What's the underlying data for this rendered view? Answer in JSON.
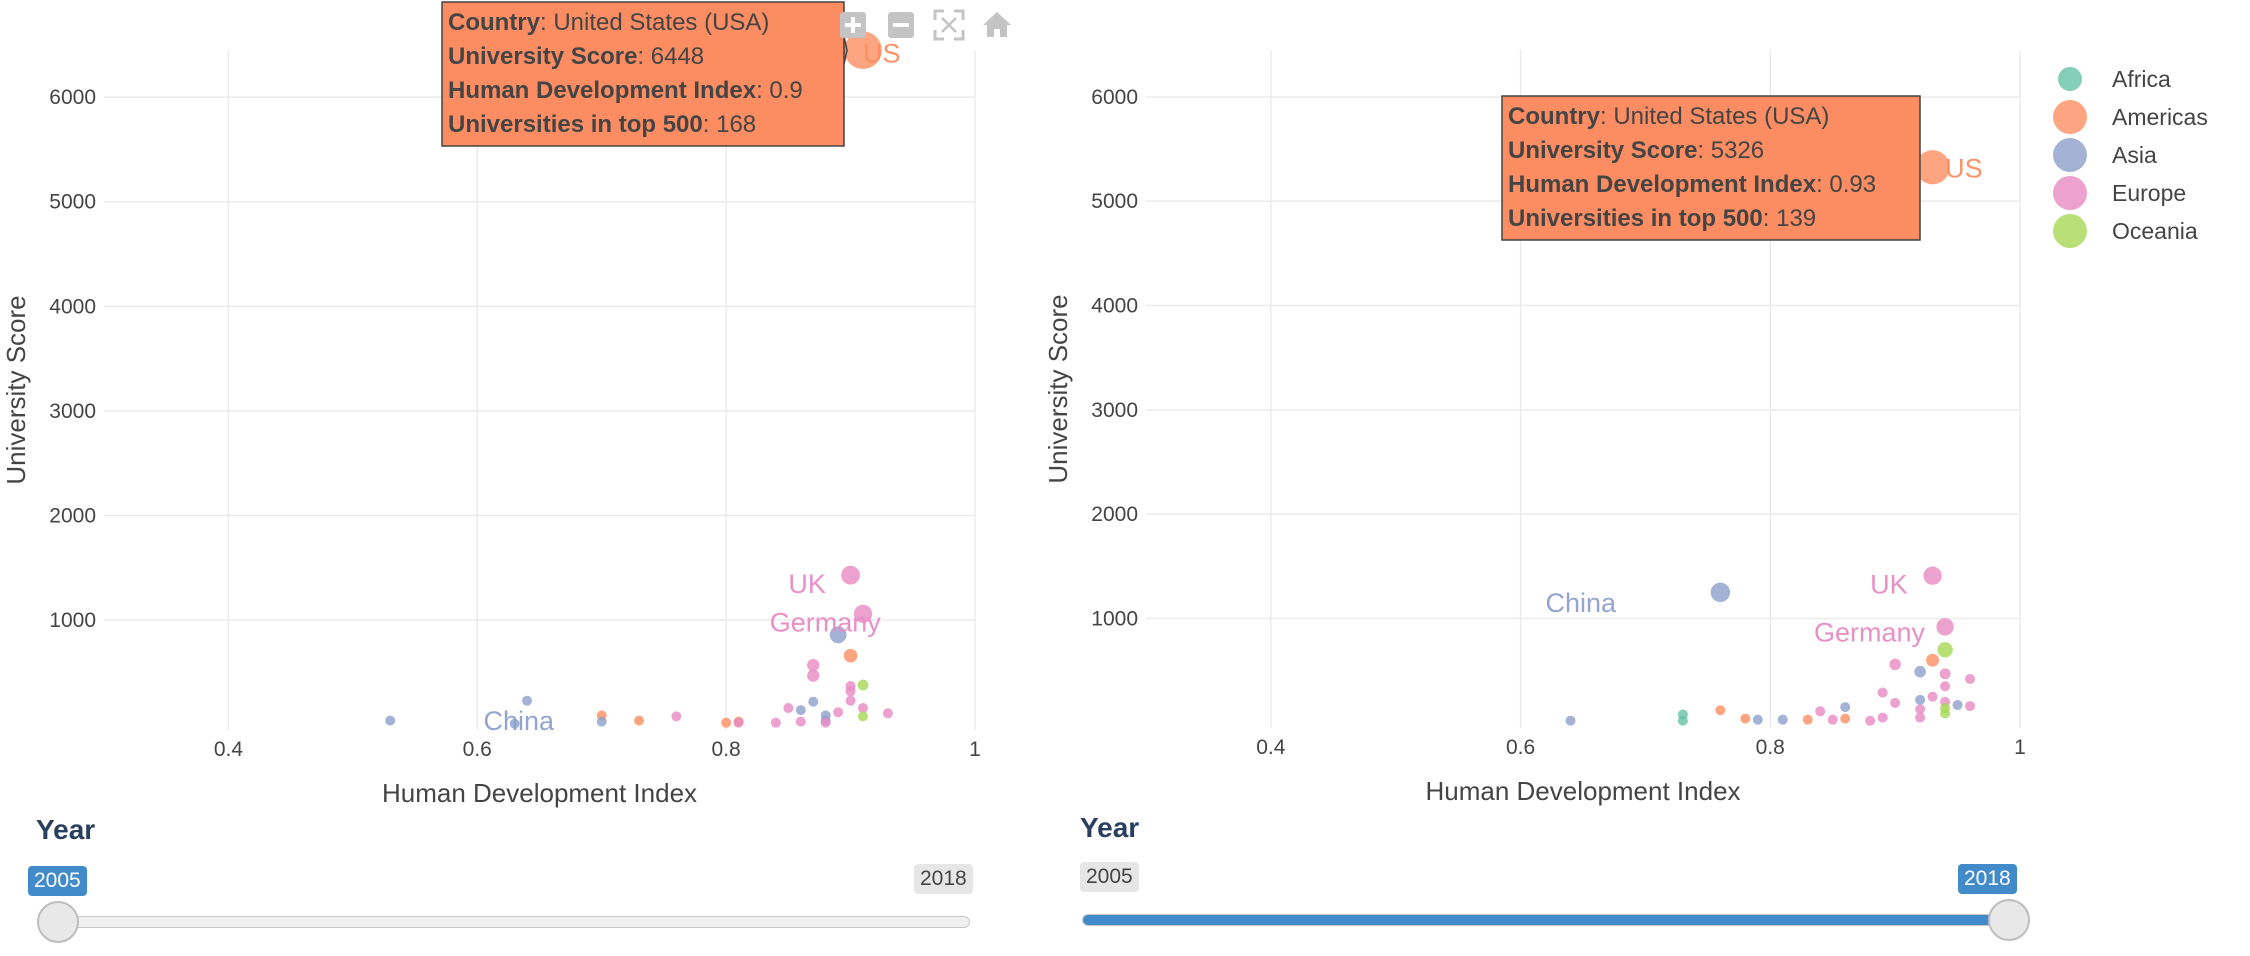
{
  "colors": {
    "Africa": "#66c2a5",
    "Americas": "#fc8d62",
    "Asia": "#8da0cb",
    "Europe": "#e78ac3",
    "Oceania": "#a6d854",
    "slider_active": "#428bca"
  },
  "legend": {
    "items": [
      {
        "label": "Africa",
        "key": "Africa"
      },
      {
        "label": "Americas",
        "key": "Americas"
      },
      {
        "label": "Asia",
        "key": "Asia"
      },
      {
        "label": "Europe",
        "key": "Europe"
      },
      {
        "label": "Oceania",
        "key": "Oceania"
      }
    ]
  },
  "modebar": {
    "icons": [
      "zoom-in-icon",
      "zoom-out-icon",
      "autoscale-icon",
      "home-icon"
    ]
  },
  "chart_data": [
    {
      "type": "scatter",
      "xlabel": "Human Development Index",
      "ylabel": "University Score",
      "xlim": [
        0.3,
        1.0
      ],
      "ylim": [
        -50,
        6450
      ],
      "xticks": [
        {
          "v": 0.4,
          "label": "0.4"
        },
        {
          "v": 0.6,
          "label": "0.6"
        },
        {
          "v": 0.8,
          "label": "0.8"
        },
        {
          "v": 1.0,
          "label": "1"
        }
      ],
      "yticks": [
        {
          "v": 1000,
          "label": "1000"
        },
        {
          "v": 2000,
          "label": "2000"
        },
        {
          "v": 3000,
          "label": "3000"
        },
        {
          "v": 4000,
          "label": "4000"
        },
        {
          "v": 5000,
          "label": "5000"
        },
        {
          "v": 6000,
          "label": "6000"
        }
      ],
      "grid": true,
      "slider": {
        "title": "Year",
        "min_label": "2005",
        "max_label": "2018",
        "current": "2005"
      },
      "tooltip": {
        "country_key": "Country",
        "country": "United States (USA)",
        "score_key": "University Score",
        "score": "6448",
        "hdi_key": "Human Development Index",
        "hdi": "0.9",
        "top_key": "Universities in top 500",
        "top": "168"
      },
      "labels": [
        {
          "text": "UK",
          "x": 0.85,
          "y": 1260,
          "region": "Europe"
        },
        {
          "text": "Germany",
          "x": 0.835,
          "y": 890,
          "region": "Europe"
        },
        {
          "text": "China",
          "x": 0.605,
          "y": -50,
          "region": "Asia"
        },
        {
          "text": "US",
          "x": 0.91,
          "y": 6330,
          "region": "Americas"
        }
      ],
      "points": [
        {
          "region": "Americas",
          "x": 0.91,
          "y": 6448,
          "size": 168
        },
        {
          "region": "Europe",
          "x": 0.9,
          "y": 1430,
          "size": 42
        },
        {
          "region": "Europe",
          "x": 0.91,
          "y": 1060,
          "size": 40
        },
        {
          "region": "Asia",
          "x": 0.89,
          "y": 860,
          "size": 34
        },
        {
          "region": "Americas",
          "x": 0.9,
          "y": 660,
          "size": 22
        },
        {
          "region": "Europe",
          "x": 0.87,
          "y": 570,
          "size": 18
        },
        {
          "region": "Europe",
          "x": 0.87,
          "y": 470,
          "size": 18
        },
        {
          "region": "Oceania",
          "x": 0.91,
          "y": 380,
          "size": 14
        },
        {
          "region": "Europe",
          "x": 0.9,
          "y": 370,
          "size": 12
        },
        {
          "region": "Europe",
          "x": 0.9,
          "y": 320,
          "size": 10
        },
        {
          "region": "Asia",
          "x": 0.64,
          "y": 230,
          "size": 10
        },
        {
          "region": "Asia",
          "x": 0.87,
          "y": 220,
          "size": 10
        },
        {
          "region": "Europe",
          "x": 0.9,
          "y": 230,
          "size": 9
        },
        {
          "region": "Europe",
          "x": 0.91,
          "y": 160,
          "size": 8
        },
        {
          "region": "Europe",
          "x": 0.85,
          "y": 160,
          "size": 8
        },
        {
          "region": "Asia",
          "x": 0.86,
          "y": 140,
          "size": 7
        },
        {
          "region": "Europe",
          "x": 0.89,
          "y": 120,
          "size": 7
        },
        {
          "region": "Europe",
          "x": 0.93,
          "y": 110,
          "size": 6
        },
        {
          "region": "Oceania",
          "x": 0.91,
          "y": 80,
          "size": 6
        },
        {
          "region": "Asia",
          "x": 0.88,
          "y": 90,
          "size": 6
        },
        {
          "region": "Americas",
          "x": 0.7,
          "y": 90,
          "size": 5
        },
        {
          "region": "Europe",
          "x": 0.76,
          "y": 80,
          "size": 5
        },
        {
          "region": "Europe",
          "x": 0.84,
          "y": 20,
          "size": 4
        },
        {
          "region": "Americas",
          "x": 0.73,
          "y": 40,
          "size": 4
        },
        {
          "region": "Asia",
          "x": 0.53,
          "y": 40,
          "size": 4
        },
        {
          "region": "Asia",
          "x": 0.7,
          "y": 30,
          "size": 3
        },
        {
          "region": "Europe",
          "x": 0.86,
          "y": 30,
          "size": 4
        },
        {
          "region": "Americas",
          "x": 0.8,
          "y": 20,
          "size": 4
        },
        {
          "region": "Americas",
          "x": 0.81,
          "y": 30,
          "size": 4
        },
        {
          "region": "Europe",
          "x": 0.81,
          "y": 20,
          "size": 3
        },
        {
          "region": "Asia",
          "x": 0.88,
          "y": 40,
          "size": 4
        },
        {
          "region": "Europe",
          "x": 0.88,
          "y": 20,
          "size": 3
        },
        {
          "region": "Asia",
          "x": 0.63,
          "y": 10,
          "size": 3
        }
      ]
    },
    {
      "type": "scatter",
      "xlabel": "Human Development Index",
      "ylabel": "University Score",
      "xlim": [
        0.3,
        1.0
      ],
      "ylim": [
        -50,
        6450
      ],
      "xticks": [
        {
          "v": 0.4,
          "label": "0.4"
        },
        {
          "v": 0.6,
          "label": "0.6"
        },
        {
          "v": 0.8,
          "label": "0.8"
        },
        {
          "v": 1.0,
          "label": "1"
        }
      ],
      "yticks": [
        {
          "v": 1000,
          "label": "1000"
        },
        {
          "v": 2000,
          "label": "2000"
        },
        {
          "v": 3000,
          "label": "3000"
        },
        {
          "v": 4000,
          "label": "4000"
        },
        {
          "v": 5000,
          "label": "5000"
        },
        {
          "v": 6000,
          "label": "6000"
        }
      ],
      "grid": true,
      "slider": {
        "title": "Year",
        "min_label": "2005",
        "max_label": "2018",
        "current": "2018"
      },
      "tooltip": {
        "country_key": "Country",
        "country": "United States (USA)",
        "score_key": "University Score",
        "score": "5326",
        "hdi_key": "Human Development Index",
        "hdi": "0.93",
        "top_key": "Universities in top 500",
        "top": "139"
      },
      "labels": [
        {
          "text": "UK",
          "x": 0.88,
          "y": 1240,
          "region": "Europe"
        },
        {
          "text": "China",
          "x": 0.62,
          "y": 1060,
          "region": "Asia"
        },
        {
          "text": "Germany",
          "x": 0.835,
          "y": 780,
          "region": "Europe"
        },
        {
          "text": "US",
          "x": 0.94,
          "y": 5230,
          "region": "Americas"
        }
      ],
      "points": [
        {
          "region": "Americas",
          "x": 0.93,
          "y": 5326,
          "size": 139
        },
        {
          "region": "Europe",
          "x": 0.93,
          "y": 1410,
          "size": 40
        },
        {
          "region": "Asia",
          "x": 0.76,
          "y": 1250,
          "size": 45
        },
        {
          "region": "Europe",
          "x": 0.94,
          "y": 920,
          "size": 36
        },
        {
          "region": "Oceania",
          "x": 0.94,
          "y": 700,
          "size": 28
        },
        {
          "region": "Americas",
          "x": 0.93,
          "y": 600,
          "size": 20
        },
        {
          "region": "Europe",
          "x": 0.9,
          "y": 560,
          "size": 16
        },
        {
          "region": "Asia",
          "x": 0.92,
          "y": 490,
          "size": 16
        },
        {
          "region": "Europe",
          "x": 0.94,
          "y": 470,
          "size": 14
        },
        {
          "region": "Europe",
          "x": 0.96,
          "y": 420,
          "size": 12
        },
        {
          "region": "Europe",
          "x": 0.94,
          "y": 350,
          "size": 12
        },
        {
          "region": "Europe",
          "x": 0.89,
          "y": 290,
          "size": 12
        },
        {
          "region": "Europe",
          "x": 0.93,
          "y": 250,
          "size": 10
        },
        {
          "region": "Asia",
          "x": 0.92,
          "y": 220,
          "size": 10
        },
        {
          "region": "Europe",
          "x": 0.94,
          "y": 200,
          "size": 8
        },
        {
          "region": "Europe",
          "x": 0.9,
          "y": 190,
          "size": 8
        },
        {
          "region": "Asia",
          "x": 0.95,
          "y": 170,
          "size": 8
        },
        {
          "region": "Europe",
          "x": 0.96,
          "y": 160,
          "size": 7
        },
        {
          "region": "Asia",
          "x": 0.86,
          "y": 150,
          "size": 7
        },
        {
          "region": "Oceania",
          "x": 0.94,
          "y": 140,
          "size": 7
        },
        {
          "region": "Europe",
          "x": 0.92,
          "y": 130,
          "size": 7
        },
        {
          "region": "Americas",
          "x": 0.76,
          "y": 120,
          "size": 8
        },
        {
          "region": "Europe",
          "x": 0.84,
          "y": 110,
          "size": 7
        },
        {
          "region": "Africa",
          "x": 0.73,
          "y": 80,
          "size": 6
        },
        {
          "region": "Americas",
          "x": 0.78,
          "y": 40,
          "size": 5
        },
        {
          "region": "Asia",
          "x": 0.79,
          "y": 30,
          "size": 4
        },
        {
          "region": "Asia",
          "x": 0.81,
          "y": 30,
          "size": 4
        },
        {
          "region": "Europe",
          "x": 0.85,
          "y": 30,
          "size": 4
        },
        {
          "region": "Europe",
          "x": 0.88,
          "y": 20,
          "size": 4
        },
        {
          "region": "Asia",
          "x": 0.64,
          "y": 20,
          "size": 4
        },
        {
          "region": "Africa",
          "x": 0.73,
          "y": 20,
          "size": 3
        },
        {
          "region": "Americas",
          "x": 0.86,
          "y": 40,
          "size": 5
        },
        {
          "region": "Europe",
          "x": 0.92,
          "y": 50,
          "size": 5
        },
        {
          "region": "Oceania",
          "x": 0.94,
          "y": 90,
          "size": 5
        },
        {
          "region": "Europe",
          "x": 0.89,
          "y": 50,
          "size": 4
        },
        {
          "region": "Americas",
          "x": 0.83,
          "y": 30,
          "size": 4
        }
      ]
    }
  ]
}
